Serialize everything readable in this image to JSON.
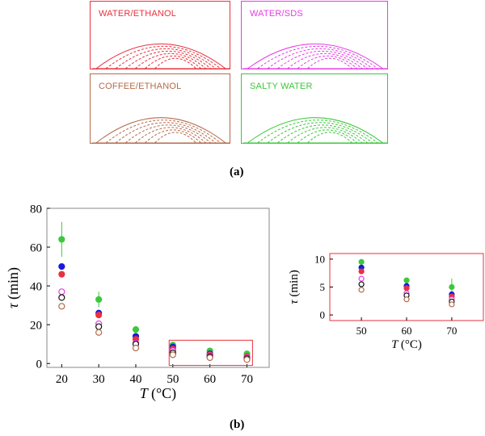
{
  "panels": [
    {
      "title": "WATER/ETHANOL",
      "color": "#e8323c"
    },
    {
      "title": "WATER/SDS",
      "color": "#e63ce6"
    },
    {
      "title": "COFFEE/ETHANOL",
      "color": "#b46a4a"
    },
    {
      "title": "SALTY WATER",
      "color": "#3cc83c"
    }
  ],
  "caption_a": "(a)",
  "caption_b": "(b)",
  "chart_data": [
    {
      "type": "scatter",
      "name": "main",
      "xlabel_var": "T",
      "xlabel_unit": "(°C)",
      "ylabel_var": "τ",
      "ylabel_unit": "(min)",
      "xlim": [
        16,
        76
      ],
      "ylim": [
        -2,
        80
      ],
      "xticks": [
        20,
        30,
        40,
        50,
        60,
        70
      ],
      "yticks": [
        0,
        20,
        40,
        60,
        80
      ],
      "series": [
        {
          "name": "salty water",
          "color": "#3cc83c",
          "filled": true,
          "x": [
            20,
            30,
            40,
            50,
            60,
            70
          ],
          "y": [
            64,
            33,
            17.5,
            9.5,
            6.5,
            5
          ],
          "err": [
            9,
            4,
            0,
            0,
            0,
            0
          ]
        },
        {
          "name": "water/ethanol blue",
          "color": "#1a1adf",
          "filled": true,
          "x": [
            20,
            30,
            40,
            50,
            60,
            70
          ],
          "y": [
            50,
            26,
            14,
            8.5,
            5,
            3.5
          ],
          "err": [
            0,
            0,
            0,
            0,
            0,
            0
          ]
        },
        {
          "name": "water/ethanol",
          "color": "#e8323c",
          "filled": true,
          "x": [
            20,
            30,
            40,
            50,
            60,
            70
          ],
          "y": [
            46,
            25,
            12.5,
            7.5,
            4.5,
            3.5
          ],
          "err": [
            0,
            0,
            0,
            0,
            0,
            0
          ]
        },
        {
          "name": "water/sds",
          "color": "#e63ce6",
          "filled": false,
          "x": [
            20,
            30,
            40,
            50,
            60,
            70
          ],
          "y": [
            37,
            20.5,
            10.5,
            6.5,
            4,
            3
          ],
          "err": [
            0,
            0,
            0,
            0,
            0,
            0
          ]
        },
        {
          "name": "black",
          "color": "#111111",
          "filled": false,
          "x": [
            20,
            30,
            40,
            50,
            60,
            70
          ],
          "y": [
            34,
            19,
            10,
            5.5,
            3.5,
            2.5
          ],
          "err": [
            0,
            0,
            0,
            0,
            0,
            0
          ]
        },
        {
          "name": "coffee/ethanol",
          "color": "#b46a4a",
          "filled": false,
          "x": [
            20,
            30,
            40,
            50,
            60,
            70
          ],
          "y": [
            29.5,
            16,
            8,
            4.5,
            3,
            2
          ],
          "err": [
            0,
            0,
            0,
            0,
            0,
            0
          ]
        }
      ],
      "highlight_box": {
        "x_range": [
          49,
          71.5
        ],
        "y_range": [
          -1,
          12
        ],
        "color": "#e8323c"
      }
    },
    {
      "type": "scatter",
      "name": "inset",
      "xlabel_var": "T",
      "xlabel_unit": "(°C)",
      "ylabel_var": "τ",
      "ylabel_unit": "(min)",
      "xlim": [
        43,
        77
      ],
      "ylim": [
        -1,
        11
      ],
      "xticks": [
        50,
        60,
        70
      ],
      "yticks": [
        0,
        5,
        10
      ],
      "series": [
        {
          "name": "salty water",
          "color": "#3cc83c",
          "filled": true,
          "x": [
            50,
            60,
            70
          ],
          "y": [
            9.5,
            6.2,
            5
          ],
          "err": [
            0,
            0,
            1.5
          ]
        },
        {
          "name": "water/ethanol blue",
          "color": "#1a1adf",
          "filled": true,
          "x": [
            50,
            60,
            70
          ],
          "y": [
            8.5,
            5.2,
            3.7
          ],
          "err": [
            0,
            0,
            0
          ]
        },
        {
          "name": "water/ethanol",
          "color": "#e8323c",
          "filled": true,
          "x": [
            50,
            60,
            70
          ],
          "y": [
            7.8,
            4.8,
            3.3
          ],
          "err": [
            0,
            0,
            0
          ]
        },
        {
          "name": "water/sds",
          "color": "#e63ce6",
          "filled": false,
          "x": [
            50,
            60,
            70
          ],
          "y": [
            6.5,
            3.9,
            2.8
          ],
          "err": [
            0,
            0,
            0
          ]
        },
        {
          "name": "black",
          "color": "#111111",
          "filled": false,
          "x": [
            50,
            60,
            70
          ],
          "y": [
            5.5,
            3.5,
            2.4
          ],
          "err": [
            0,
            0,
            0
          ]
        },
        {
          "name": "coffee/ethanol",
          "color": "#b46a4a",
          "filled": false,
          "x": [
            50,
            60,
            70
          ],
          "y": [
            4.5,
            2.8,
            1.9
          ],
          "err": [
            0,
            0,
            0
          ]
        }
      ]
    }
  ]
}
